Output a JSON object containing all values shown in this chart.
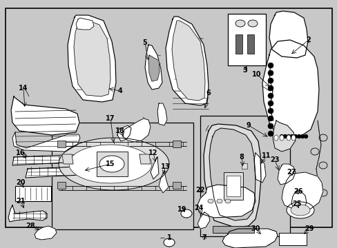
{
  "bg_color": "#c8c8c8",
  "diagram_bg": "#c8c8c8",
  "border_color": "#000000",
  "line_color": "#000000",
  "white": "#ffffff",
  "light_gray": "#dddddd",
  "mid_gray": "#aaaaaa",
  "dark_gray": "#666666",
  "figw": 4.89,
  "figh": 3.6,
  "dpi": 100
}
